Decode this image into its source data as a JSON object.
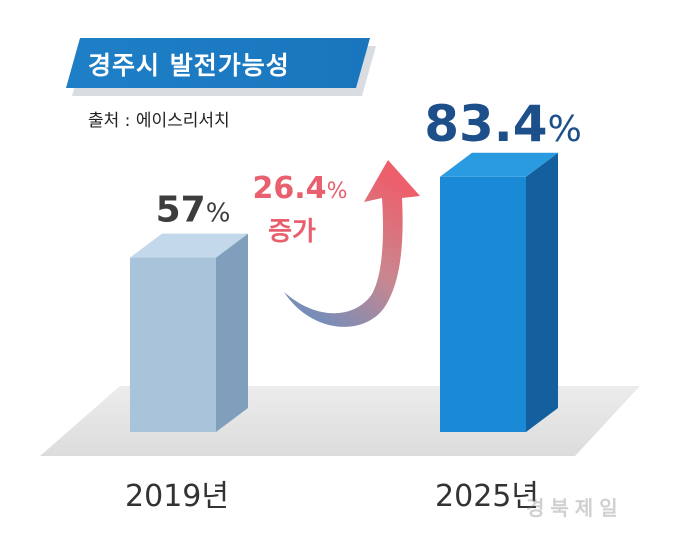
{
  "title": "경주시 발전가능성",
  "source": "출처 : 에이스리서치",
  "chart_data": {
    "type": "bar",
    "categories": [
      "2019년",
      "2025년"
    ],
    "values": [
      57,
      83.4
    ],
    "data_labels": [
      {
        "number": "57",
        "unit": "%"
      },
      {
        "number": "83.4",
        "unit": "%"
      }
    ],
    "ylim": [
      0,
      100
    ],
    "annotation": {
      "number": "26.4",
      "unit": "%",
      "label": "증가"
    },
    "colors": {
      "bar_2019_front": "#a9c3db",
      "bar_2019_top": "#c3d8ea",
      "bar_2019_side": "#7f9fbd",
      "bar_2025_front": "#1a8ad6",
      "bar_2025_top": "#2a9be0",
      "bar_2025_side": "#14609f",
      "label_2019": "#3d3d3d",
      "label_2025": "#1d4f8a",
      "annotation": "#e8606e",
      "banner": "#1e7fc7"
    }
  },
  "watermark": "경북제일"
}
